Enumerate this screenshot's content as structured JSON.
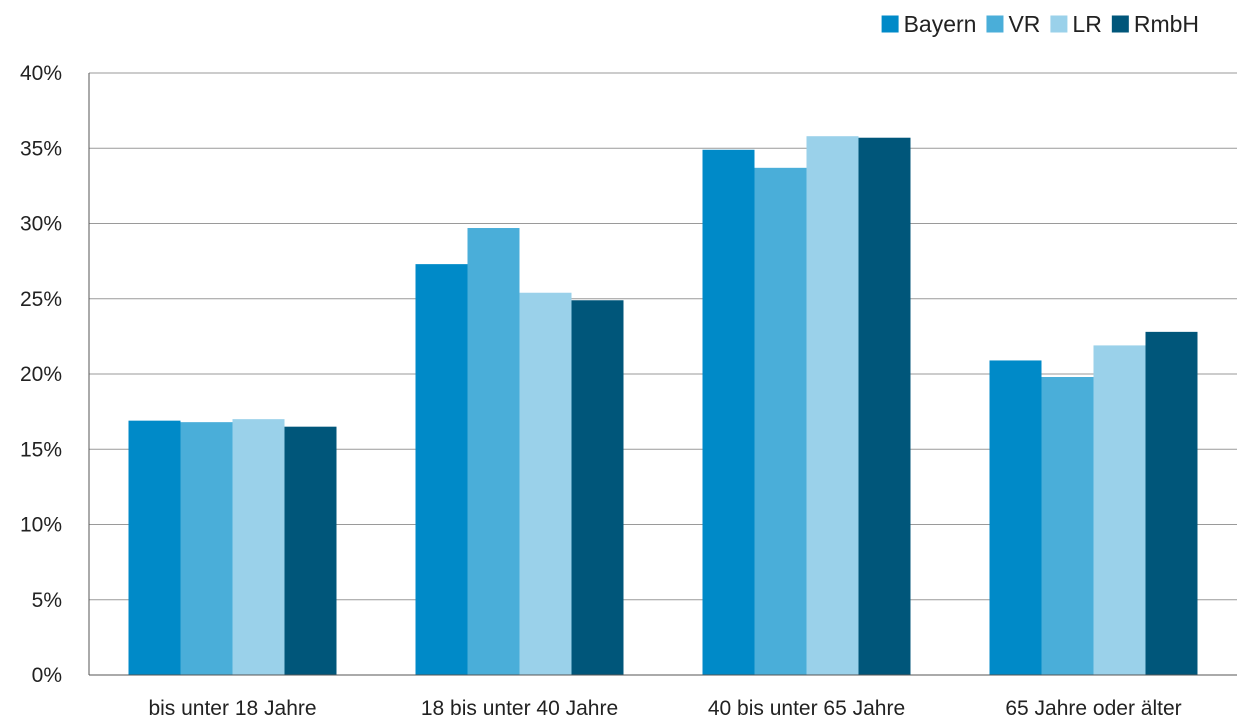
{
  "chart_data": {
    "type": "bar",
    "title": "",
    "xlabel": "",
    "ylabel": "",
    "categories": [
      "bis unter 18 Jahre",
      "18 bis unter 40 Jahre",
      "40 bis unter 65 Jahre",
      "65 Jahre oder älter"
    ],
    "series": [
      {
        "name": "Bayern",
        "color": "#008ac8",
        "values": [
          16.9,
          27.3,
          34.9,
          20.9
        ]
      },
      {
        "name": "VR",
        "color": "#4aaed9",
        "values": [
          16.8,
          29.7,
          33.7,
          19.8
        ]
      },
      {
        "name": "LR",
        "color": "#9ad1ea",
        "values": [
          17.0,
          25.4,
          35.8,
          21.9
        ]
      },
      {
        "name": "RmbH",
        "color": "#00567a",
        "values": [
          16.5,
          24.9,
          35.7,
          22.8
        ]
      }
    ],
    "ylim": [
      0,
      40
    ],
    "yticks": [
      "0%",
      "5%",
      "10%",
      "15%",
      "20%",
      "25%",
      "30%",
      "35%",
      "40%"
    ],
    "grid": true,
    "legend_position": "top-right"
  }
}
